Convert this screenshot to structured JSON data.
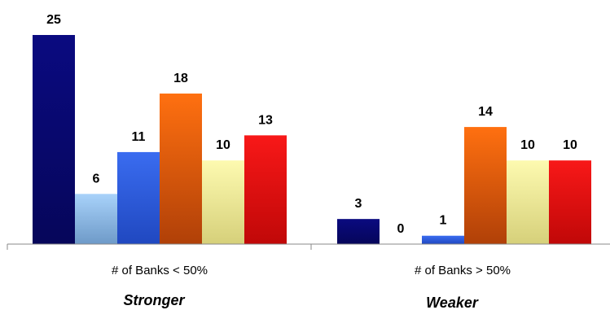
{
  "chart_data": {
    "type": "bar",
    "categories": [
      "# of Banks < 50%",
      "# of Banks > 50%"
    ],
    "group_labels": [
      "Stronger",
      "Weaker"
    ],
    "series": [
      {
        "values": [
          25,
          3
        ],
        "color": "#0a0a78"
      },
      {
        "values": [
          6,
          0
        ],
        "color": "#8ab6e6"
      },
      {
        "values": [
          11,
          1
        ],
        "color": "#2f5fe0"
      },
      {
        "values": [
          18,
          14
        ],
        "color": "#e86a10"
      },
      {
        "values": [
          10,
          10
        ],
        "color": "#f6f2a0"
      },
      {
        "values": [
          13,
          10
        ],
        "color": "#e01010"
      }
    ],
    "ylim": [
      0,
      25
    ],
    "grid": false,
    "legend": "none"
  }
}
